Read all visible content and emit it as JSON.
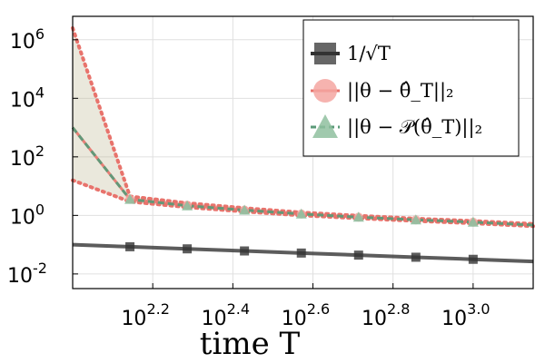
{
  "chart_data": {
    "type": "line",
    "xlabel": "time T",
    "x_scale": "log10",
    "y_scale": "log10",
    "xlim_log10": [
      2.0,
      3.15
    ],
    "ylim_log10": [
      -2.5,
      6.8
    ],
    "x_ticks": [
      {
        "base": "10",
        "exp": "2.2",
        "log10": 2.2
      },
      {
        "base": "10",
        "exp": "2.4",
        "log10": 2.4
      },
      {
        "base": "10",
        "exp": "2.6",
        "log10": 2.6
      },
      {
        "base": "10",
        "exp": "2.8",
        "log10": 2.8
      },
      {
        "base": "10",
        "exp": "3.0",
        "log10": 3.0
      }
    ],
    "y_ticks": [
      {
        "base": "10",
        "exp": "-2",
        "log10": -2
      },
      {
        "base": "10",
        "exp": "0",
        "log10": 0
      },
      {
        "base": "10",
        "exp": "2",
        "log10": 2
      },
      {
        "base": "10",
        "exp": "4",
        "log10": 4
      },
      {
        "base": "10",
        "exp": "6",
        "log10": 6
      }
    ],
    "grid": true,
    "legend_position": "top-right",
    "series": [
      {
        "name": "1/√T",
        "color": "#333333",
        "marker": "square",
        "x_log10": [
          2.0,
          2.143,
          2.286,
          2.429,
          2.571,
          2.714,
          2.857,
          3.0,
          3.15
        ],
        "y_log10": [
          -1.0,
          -1.071,
          -1.143,
          -1.214,
          -1.286,
          -1.357,
          -1.429,
          -1.5,
          -1.575
        ]
      },
      {
        "name": "||θ − θ̂_T||₂",
        "color": "#e8736c",
        "marker": "circle",
        "x_log10": [
          2.0,
          2.143,
          2.286,
          2.429,
          2.571,
          2.714,
          2.857,
          3.0,
          3.15
        ],
        "y_log10": [
          3.0,
          0.55,
          0.35,
          0.18,
          0.05,
          -0.06,
          -0.15,
          -0.23,
          -0.33
        ],
        "band_upper_log10": [
          6.4,
          0.65,
          0.42,
          0.25,
          0.1,
          -0.01,
          -0.11,
          -0.19,
          -0.29
        ],
        "band_lower_log10": [
          1.2,
          0.47,
          0.28,
          0.13,
          0.0,
          -0.1,
          -0.19,
          -0.27,
          -0.37
        ]
      },
      {
        "name": "||θ − 𝒫(θ̂_T)||₂",
        "color": "#5b9a78",
        "marker": "triangle",
        "x_log10": [
          2.0,
          2.143,
          2.286,
          2.429,
          2.571,
          2.714,
          2.857,
          3.0,
          3.15
        ],
        "y_log10": [
          3.0,
          0.55,
          0.33,
          0.18,
          0.05,
          -0.06,
          -0.15,
          -0.23,
          -0.33
        ]
      }
    ]
  }
}
